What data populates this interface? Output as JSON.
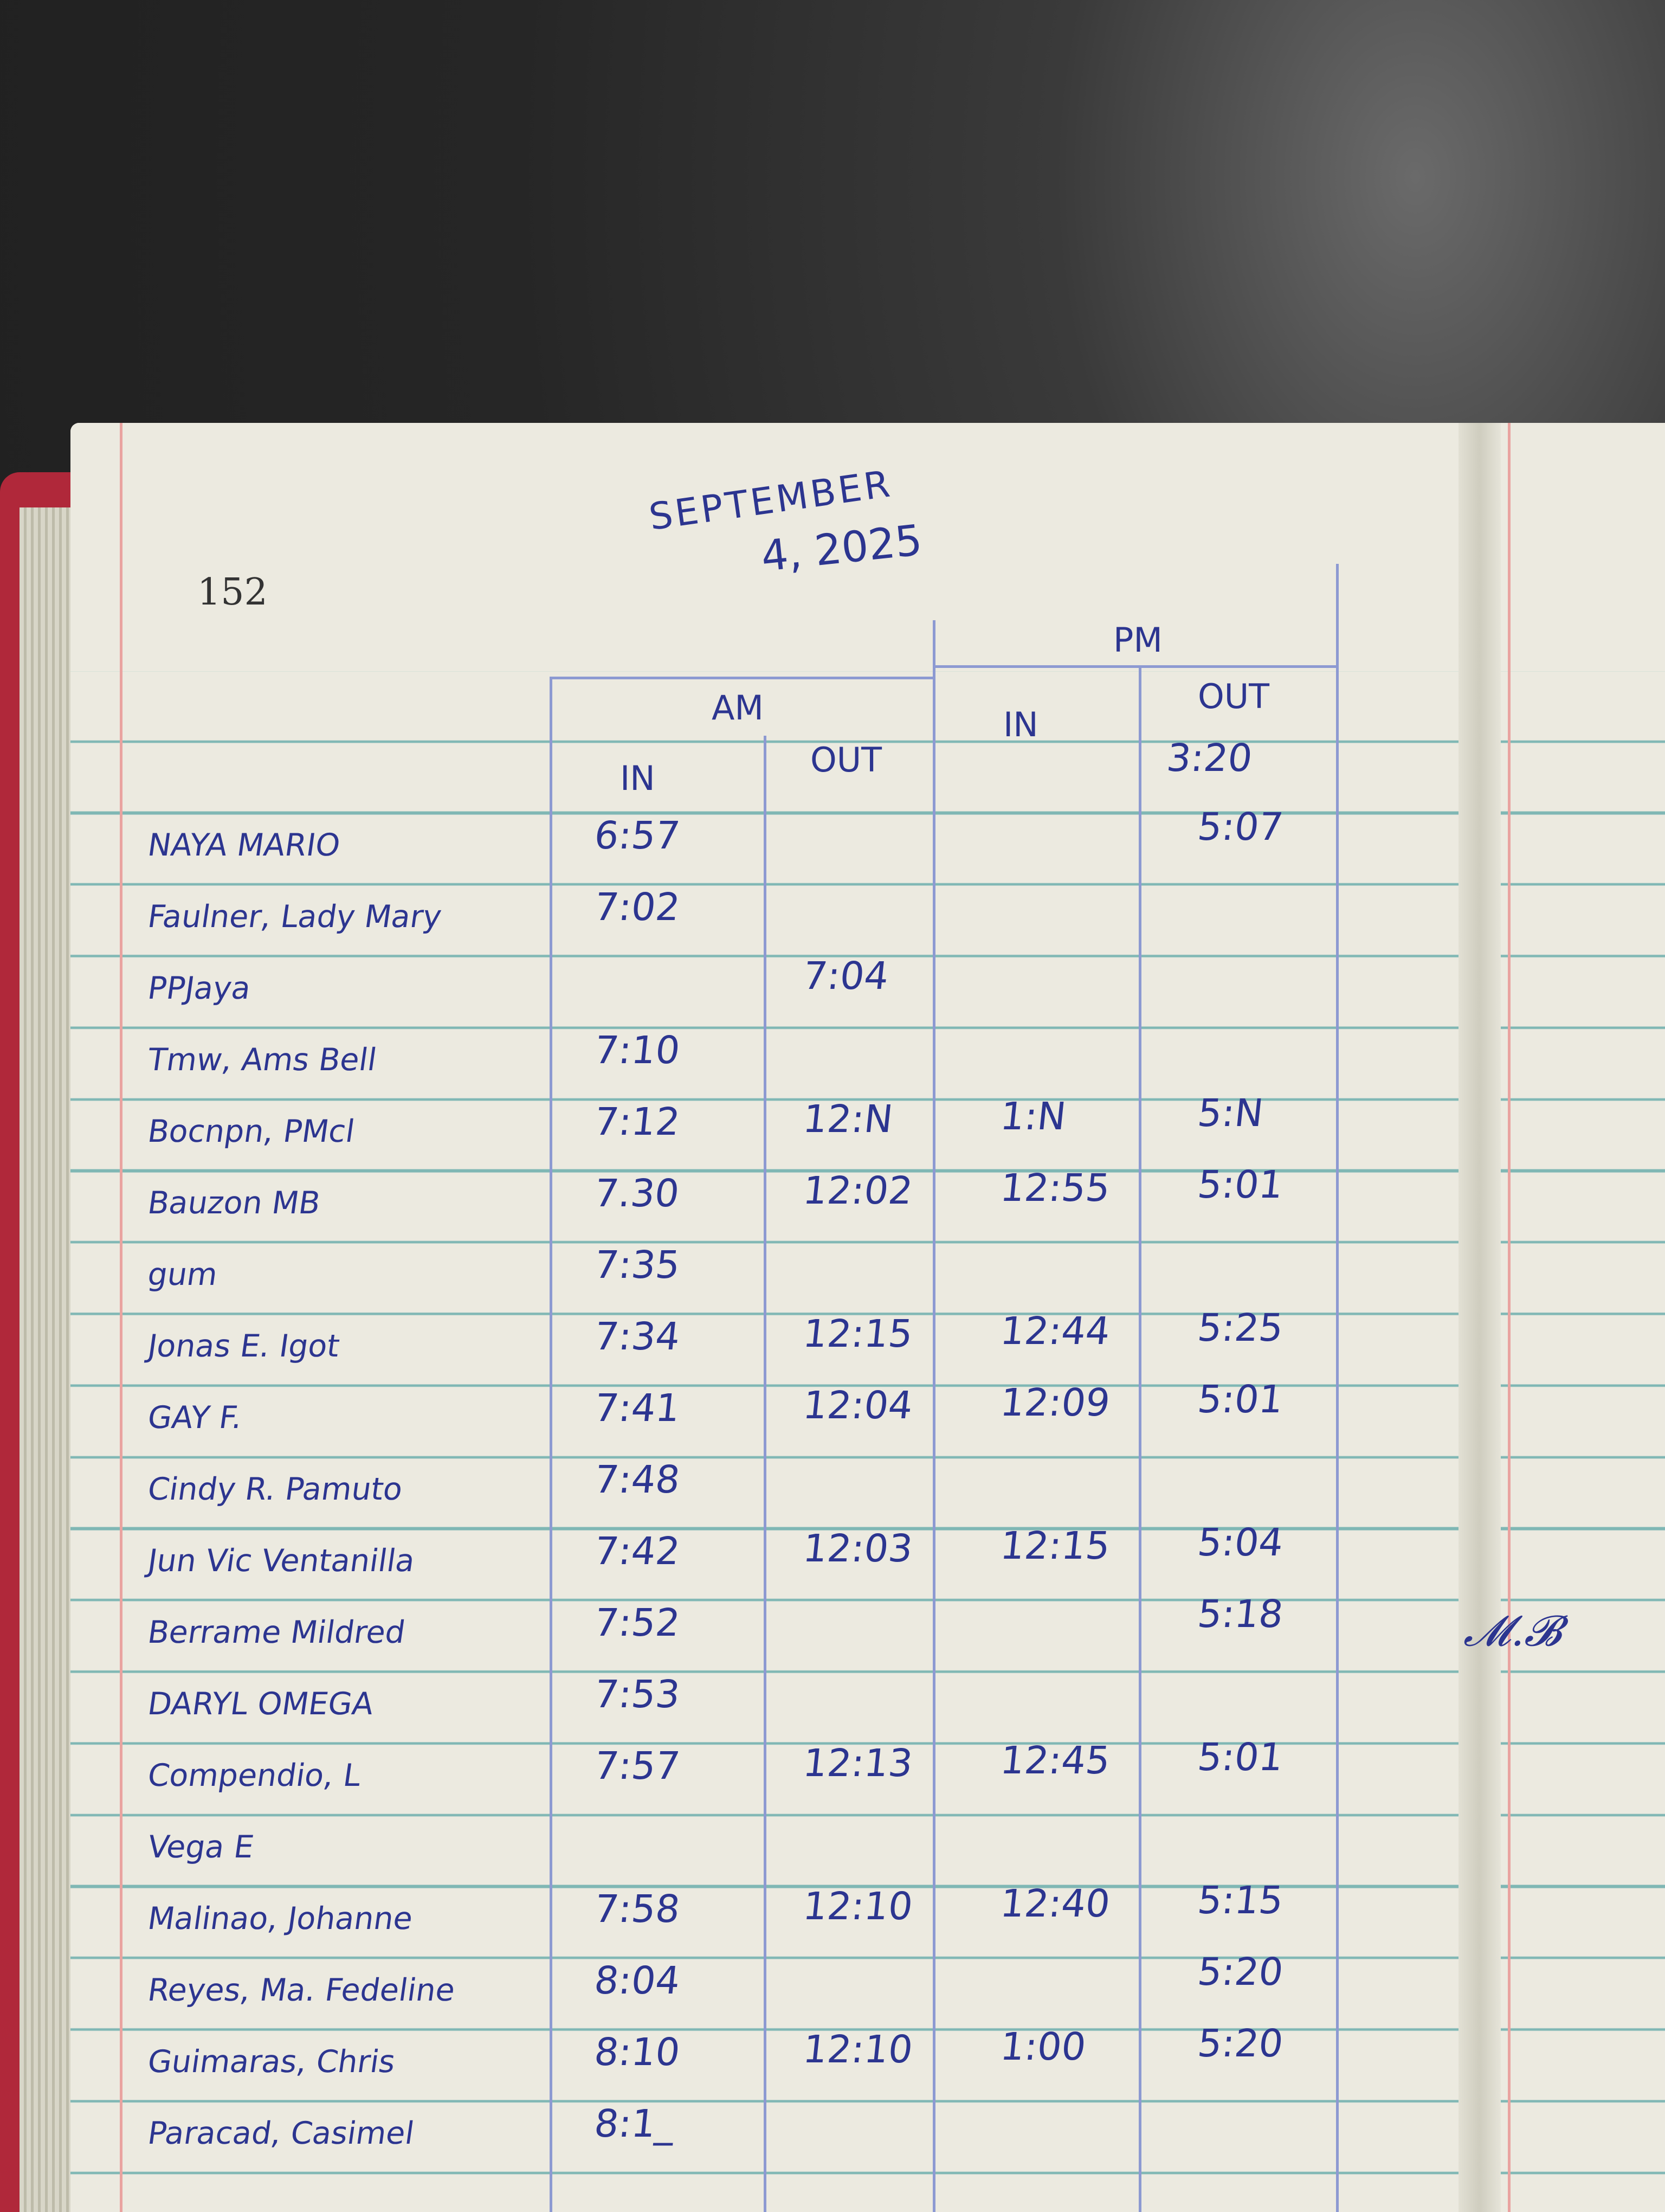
{
  "page_number": "152",
  "date": {
    "line1": "SEPTEMBER",
    "line2": "4, 2025"
  },
  "header": {
    "am": "AM",
    "pm": "PM",
    "am_in": "IN",
    "am_out": "OUT",
    "pm_in": "IN",
    "pm_out": "OUT",
    "first_pm_out": "3:20"
  },
  "rows": [
    {
      "name": "NAYA MARIO",
      "am_in": "6:57",
      "am_out": "",
      "pm_in": "",
      "pm_out": "5:07"
    },
    {
      "name": "Faulner, Lady Mary",
      "am_in": "7:02",
      "am_out": "",
      "pm_in": "",
      "pm_out": ""
    },
    {
      "name": "PPJaya",
      "am_in": "",
      "am_out": "7:04",
      "pm_in": "",
      "pm_out": ""
    },
    {
      "name": "Tmw, Ams Bell",
      "am_in": "7:10",
      "am_out": "",
      "pm_in": "",
      "pm_out": ""
    },
    {
      "name": "Bocnpn, PMcl",
      "am_in": "7:12",
      "am_out": "12:N",
      "pm_in": "1:N",
      "pm_out": "5:N"
    },
    {
      "name": "Bauzon MB",
      "am_in": "7.30",
      "am_out": "12:02",
      "pm_in": "12:55",
      "pm_out": "5:01"
    },
    {
      "name": "gum",
      "am_in": "7:35",
      "am_out": "",
      "pm_in": "",
      "pm_out": ""
    },
    {
      "name": "Jonas E. Igot",
      "am_in": "7:34",
      "am_out": "12:15",
      "pm_in": "12:44",
      "pm_out": "5:25"
    },
    {
      "name": "GAY F.",
      "am_in": "7:41",
      "am_out": "12:04",
      "pm_in": "12:09",
      "pm_out": "5:01"
    },
    {
      "name": "Cindy R. Pamuto",
      "am_in": "7:48",
      "am_out": "",
      "pm_in": "",
      "pm_out": ""
    },
    {
      "name": "Jun Vic Ventanilla",
      "am_in": "7:42",
      "am_out": "12:03",
      "pm_in": "12:15",
      "pm_out": "5:04"
    },
    {
      "name": "Berrame Mildred",
      "am_in": "7:52",
      "am_out": "",
      "pm_in": "",
      "pm_out": "5:18"
    },
    {
      "name": "DARYL OMEGA",
      "am_in": "7:53",
      "am_out": "",
      "pm_in": "",
      "pm_out": ""
    },
    {
      "name": "Compendio, L",
      "am_in": "7:57",
      "am_out": "12:13",
      "pm_in": "12:45",
      "pm_out": "5:01"
    },
    {
      "name": "Vega E",
      "am_in": "",
      "am_out": "",
      "pm_in": "",
      "pm_out": ""
    },
    {
      "name": "Malinao, Johanne",
      "am_in": "7:58",
      "am_out": "12:10",
      "pm_in": "12:40",
      "pm_out": "5:15"
    },
    {
      "name": "Reyes, Ma. Fedeline",
      "am_in": "8:04",
      "am_out": "",
      "pm_in": "",
      "pm_out": "5:20"
    },
    {
      "name": "Guimaras, Chris",
      "am_in": "8:10",
      "am_out": "12:10",
      "pm_in": "1:00",
      "pm_out": "5:20"
    },
    {
      "name": "Paracad, Casimel",
      "am_in": "8:1_",
      "am_out": "",
      "pm_in": "",
      "pm_out": ""
    }
  ],
  "ink_color": "#2c3590",
  "paper_color": "#eceae0"
}
